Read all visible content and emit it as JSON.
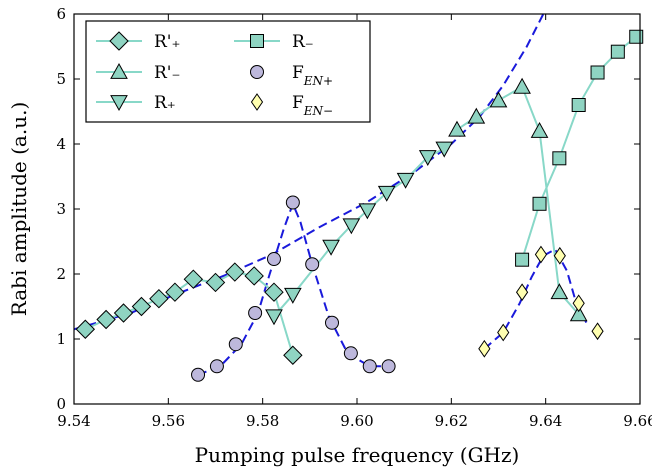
{
  "chart_data": {
    "type": "scatter",
    "xlabel": "Pumping pulse frequency (GHz)",
    "ylabel": "Rabi amplitude (a.u.)",
    "xlim": [
      9.54,
      9.66
    ],
    "ylim": [
      0,
      6
    ],
    "xticks": [
      "9.54",
      "9.56",
      "9.58",
      "9.60",
      "9.62",
      "9.64",
      "9.66"
    ],
    "yticks": [
      "0",
      "1",
      "2",
      "3",
      "4",
      "5",
      "6"
    ],
    "grid": false,
    "legend_position": "top-left",
    "colors": {
      "teal_line": "#88d8c8",
      "teal_marker": "#8fd4c2",
      "fen_plus": "#bdb8dc",
      "fen_minus": "#ffffb0",
      "dashed": "#1a1adb",
      "edge": "#000000"
    },
    "series": [
      {
        "name": "R'₊",
        "marker": "diamond",
        "line": true,
        "points": [
          [
            9.5424,
            1.15
          ],
          [
            9.5468,
            1.3
          ],
          [
            9.5505,
            1.4
          ],
          [
            9.5543,
            1.5
          ],
          [
            9.558,
            1.62
          ],
          [
            9.5614,
            1.72
          ],
          [
            9.5653,
            1.92
          ],
          [
            9.57,
            1.87
          ],
          [
            9.5741,
            2.03
          ],
          [
            9.5782,
            1.97
          ],
          [
            9.5824,
            1.72
          ],
          [
            9.5864,
            0.75
          ]
        ]
      },
      {
        "name": "R'₋",
        "marker": "triangle-up",
        "line": true,
        "points": [
          [
            9.6212,
            4.22
          ],
          [
            9.6253,
            4.42
          ],
          [
            9.63,
            4.67
          ],
          [
            9.635,
            4.88
          ],
          [
            9.6387,
            4.2
          ],
          [
            9.6429,
            1.72
          ],
          [
            9.647,
            1.38
          ]
        ]
      },
      {
        "name": "R₊",
        "marker": "triangle-down",
        "line": true,
        "points": [
          [
            9.5824,
            1.35
          ],
          [
            9.5864,
            1.68
          ],
          [
            9.5945,
            2.42
          ],
          [
            9.5988,
            2.75
          ],
          [
            9.6022,
            2.98
          ],
          [
            9.6063,
            3.25
          ],
          [
            9.6103,
            3.45
          ],
          [
            9.615,
            3.8
          ],
          [
            9.6185,
            3.93
          ]
        ]
      },
      {
        "name": "R₋",
        "marker": "square",
        "line": true,
        "points": [
          [
            9.635,
            2.22
          ],
          [
            9.6387,
            3.08
          ],
          [
            9.6429,
            3.78
          ],
          [
            9.647,
            4.6
          ],
          [
            9.651,
            5.1
          ],
          [
            9.6553,
            5.42
          ],
          [
            9.6592,
            5.65
          ]
        ]
      },
      {
        "name": "F_{EN+}",
        "marker": "circle",
        "line": false,
        "points": [
          [
            9.5663,
            0.45
          ],
          [
            9.5703,
            0.58
          ],
          [
            9.5743,
            0.92
          ],
          [
            9.5784,
            1.4
          ],
          [
            9.5824,
            2.23
          ],
          [
            9.5864,
            3.1
          ],
          [
            9.5905,
            2.15
          ],
          [
            9.5947,
            1.25
          ],
          [
            9.5987,
            0.78
          ],
          [
            9.6027,
            0.58
          ],
          [
            9.6067,
            0.58
          ]
        ]
      },
      {
        "name": "F_{EN−}",
        "marker": "thin-diamond",
        "line": false,
        "points": [
          [
            9.627,
            0.85
          ],
          [
            9.631,
            1.1
          ],
          [
            9.635,
            1.72
          ],
          [
            9.639,
            2.3
          ],
          [
            9.643,
            2.28
          ],
          [
            9.647,
            1.55
          ],
          [
            9.651,
            1.12
          ]
        ]
      }
    ],
    "fits": [
      {
        "style": "dashed",
        "points": [
          [
            9.54,
            1.15
          ],
          [
            9.552,
            1.4
          ],
          [
            9.562,
            1.7
          ],
          [
            9.572,
            1.98
          ],
          [
            9.582,
            2.3
          ],
          [
            9.592,
            2.72
          ],
          [
            9.602,
            3.1
          ],
          [
            9.612,
            3.56
          ],
          [
            9.62,
            4.0
          ],
          [
            9.626,
            4.42
          ],
          [
            9.631,
            4.9
          ],
          [
            9.636,
            5.5
          ],
          [
            9.6395,
            6.0
          ]
        ]
      },
      {
        "style": "dashed",
        "points": [
          [
            9.5663,
            0.45
          ],
          [
            9.571,
            0.58
          ],
          [
            9.5755,
            0.92
          ],
          [
            9.579,
            1.4
          ],
          [
            9.5815,
            2.0
          ],
          [
            9.5845,
            2.7
          ],
          [
            9.5864,
            3.08
          ],
          [
            9.588,
            2.8
          ],
          [
            9.5905,
            2.15
          ],
          [
            9.594,
            1.35
          ],
          [
            9.598,
            0.78
          ],
          [
            9.6027,
            0.58
          ],
          [
            9.6067,
            0.58
          ]
        ]
      },
      {
        "style": "dashed",
        "points": [
          [
            9.627,
            0.85
          ],
          [
            9.631,
            1.1
          ],
          [
            9.6345,
            1.55
          ],
          [
            9.637,
            1.95
          ],
          [
            9.6395,
            2.28
          ],
          [
            9.642,
            2.38
          ],
          [
            9.6445,
            2.05
          ],
          [
            9.6465,
            1.55
          ],
          [
            9.649,
            1.2
          ]
        ]
      }
    ]
  }
}
